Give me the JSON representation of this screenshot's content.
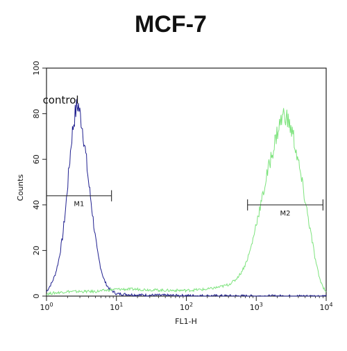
{
  "chart_data": {
    "type": "line",
    "title": "MCF-7",
    "xlabel": "FL1-H",
    "ylabel": "Counts",
    "x_scale": "log",
    "xlim": [
      1,
      10000
    ],
    "ylim": [
      0,
      100
    ],
    "x_ticks": [
      {
        "value": 1,
        "base": "10",
        "exp": "0"
      },
      {
        "value": 10,
        "base": "10",
        "exp": "1"
      },
      {
        "value": 100,
        "base": "10",
        "exp": "2"
      },
      {
        "value": 1000,
        "base": "10",
        "exp": "3"
      },
      {
        "value": 10000,
        "base": "10",
        "exp": "4"
      }
    ],
    "y_ticks": [
      "0",
      "20",
      "40",
      "60",
      "80",
      "100"
    ],
    "grid": false,
    "series": [
      {
        "name": "control",
        "color": "#1f1f8f",
        "x": [
          1,
          1.1,
          1.2,
          1.35,
          1.5,
          1.7,
          1.9,
          2.1,
          2.3,
          2.5,
          2.7,
          2.85,
          3.0,
          3.2,
          3.4,
          3.7,
          4.0,
          4.4,
          4.8,
          5.3,
          5.9,
          6.5,
          7.2,
          8.0,
          9.0,
          10,
          20,
          50,
          100,
          300,
          1000,
          10000
        ],
        "y": [
          2,
          4,
          6,
          10,
          16,
          26,
          40,
          56,
          70,
          78,
          83,
          84,
          80,
          76,
          70,
          60,
          50,
          40,
          30,
          20,
          13,
          8,
          5,
          3,
          2,
          1,
          0.5,
          0.3,
          0.2,
          0.1,
          0,
          0
        ]
      },
      {
        "name": "",
        "color": "#7de37d",
        "x": [
          1,
          2,
          5,
          10,
          20,
          50,
          100,
          200,
          300,
          400,
          500,
          600,
          700,
          800,
          900,
          1000,
          1200,
          1400,
          1600,
          1800,
          2000,
          2200,
          2400,
          2600,
          2800,
          3000,
          3400,
          3800,
          4200,
          5000,
          6000,
          7000,
          8000,
          9000,
          10000
        ],
        "y": [
          1,
          2,
          2,
          3,
          3,
          2.5,
          2.5,
          3,
          4,
          5,
          7,
          10,
          14,
          19,
          25,
          32,
          42,
          52,
          60,
          66,
          72,
          76,
          79,
          80,
          77,
          75,
          70,
          62,
          55,
          42,
          28,
          16,
          8,
          4,
          2
        ]
      }
    ],
    "markers": [
      {
        "label": "M1",
        "x_start": 1,
        "x_end": 8.5,
        "y": 44
      },
      {
        "label": "M2",
        "x_start": 750,
        "x_end": 9000,
        "y": 40
      }
    ],
    "annotations": [
      {
        "text": "control",
        "x": 1.6,
        "y": 96
      }
    ]
  }
}
